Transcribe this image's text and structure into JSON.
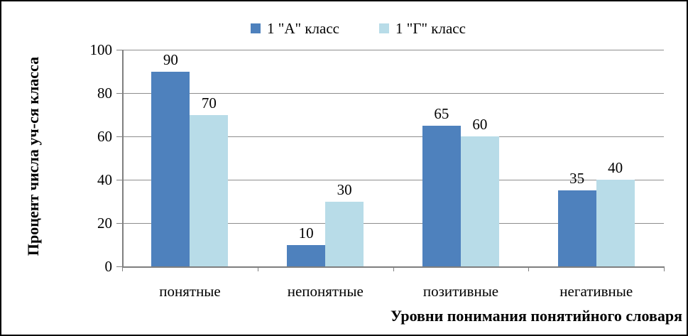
{
  "chart_data": {
    "type": "bar",
    "title": "",
    "categories": [
      "понятные",
      "непонятные",
      "позитивные",
      "негативные"
    ],
    "series": [
      {
        "name": "1 \"А\" класс",
        "color": "#4e81bd",
        "values": [
          90,
          10,
          65,
          35
        ]
      },
      {
        "name": "1 \"Г\" класс",
        "color": "#b8dce8",
        "values": [
          70,
          30,
          60,
          40
        ]
      }
    ],
    "xlabel": "Уровни понимания понятийного словаря",
    "ylabel": "Процент числа уч-ся класса",
    "ylim": [
      0,
      100
    ],
    "yticks": [
      0,
      20,
      40,
      60,
      80,
      100
    ],
    "grid": "horizontal-only",
    "legend_position": "top-center",
    "data_labels": true,
    "colors": {
      "gridline": "#8e8e8e",
      "axis": "#7f7f7f",
      "text": "#000000",
      "background": "#ffffff",
      "frame_border": "#000000"
    }
  }
}
